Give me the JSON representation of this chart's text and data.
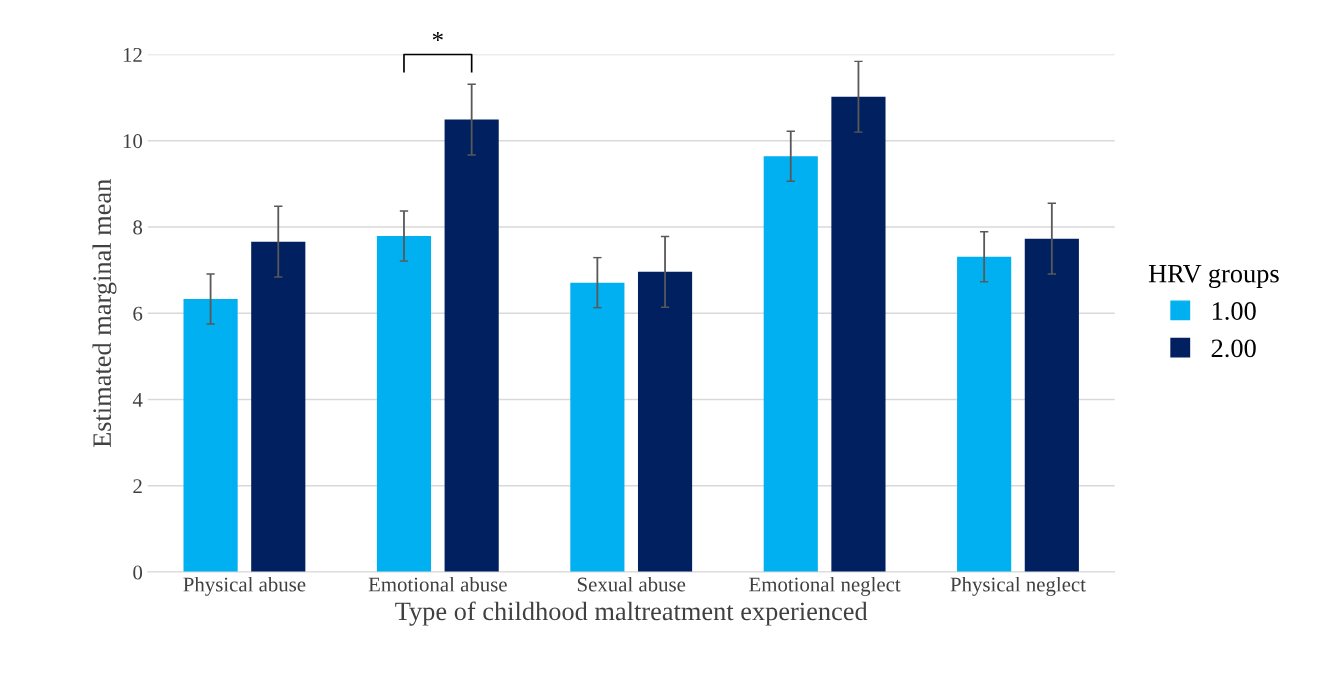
{
  "chart_data": {
    "type": "bar",
    "xlabel": "Type of childhood maltreatment experienced",
    "ylabel": "Estimated marginal mean",
    "categories": [
      "Physical abuse",
      "Emotional abuse",
      "Sexual abuse",
      "Emotional neglect",
      "Physical neglect"
    ],
    "series": [
      {
        "name": "1.00",
        "color": "#00b0f0",
        "values": [
          6.33,
          7.79,
          6.71,
          9.64,
          7.31
        ],
        "errors": [
          0.58,
          0.58,
          0.58,
          0.58,
          0.58
        ]
      },
      {
        "name": "2.00",
        "color": "#002060",
        "values": [
          7.66,
          10.49,
          6.96,
          11.02,
          7.73
        ],
        "errors": [
          0.82,
          0.82,
          0.82,
          0.82,
          0.82
        ]
      }
    ],
    "ylim": [
      0,
      12
    ],
    "yticks": [
      0,
      2,
      4,
      6,
      8,
      10,
      12
    ],
    "grid": "y",
    "legend": "right",
    "legend_title": "HRV groups",
    "annotations": [
      "*"
    ]
  }
}
